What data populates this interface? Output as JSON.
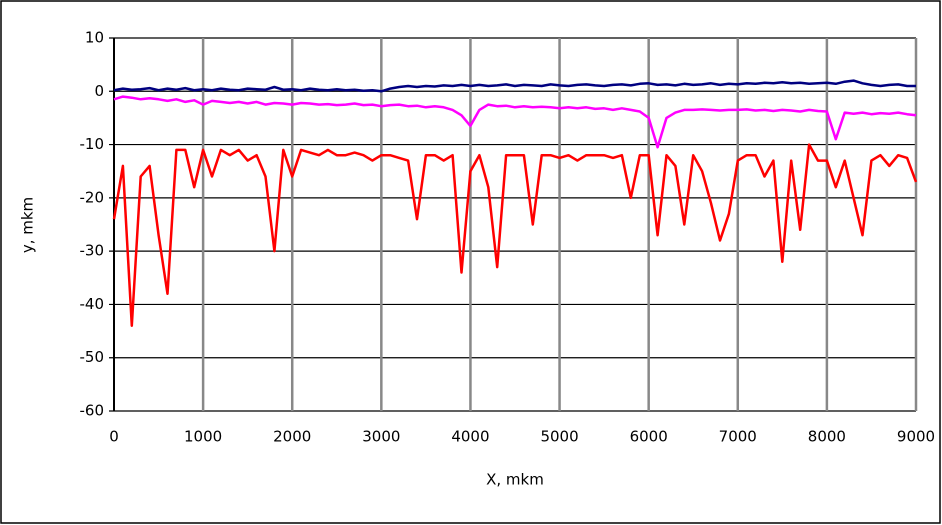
{
  "chart_data": {
    "type": "line",
    "x_label": "X, mkm",
    "y_label": "y, mkm",
    "x": [
      0,
      100,
      200,
      300,
      400,
      500,
      600,
      700,
      800,
      900,
      1000,
      1100,
      1200,
      1300,
      1400,
      1500,
      1600,
      1700,
      1800,
      1900,
      2000,
      2100,
      2200,
      2300,
      2400,
      2500,
      2600,
      2700,
      2800,
      2900,
      3000,
      3100,
      3200,
      3300,
      3400,
      3500,
      3600,
      3700,
      3800,
      3900,
      4000,
      4100,
      4200,
      4300,
      4400,
      4500,
      4600,
      4700,
      4800,
      4900,
      5000,
      5100,
      5200,
      5300,
      5400,
      5500,
      5600,
      5700,
      5800,
      5900,
      6000,
      6100,
      6200,
      6300,
      6400,
      6500,
      6600,
      6700,
      6800,
      6900,
      7000,
      7100,
      7200,
      7300,
      7400,
      7500,
      7600,
      7700,
      7800,
      7900,
      8000,
      8100,
      8200,
      8300,
      8400,
      8500,
      8600,
      8700,
      8800,
      8900,
      9000
    ],
    "series": [
      {
        "color": "#000080",
        "values": [
          0.2,
          0.5,
          0.3,
          0.4,
          0.6,
          0.2,
          0.5,
          0.3,
          0.6,
          0.2,
          0.4,
          0.2,
          0.5,
          0.3,
          0.2,
          0.5,
          0.4,
          0.3,
          0.8,
          0.3,
          0.4,
          0.2,
          0.5,
          0.3,
          0.2,
          0.4,
          0.2,
          0.3,
          0.1,
          0.2,
          0,
          0.5,
          0.8,
          1,
          0.8,
          1,
          0.9,
          1.1,
          1,
          1.2,
          1,
          1.2,
          1,
          1.1,
          1.3,
          1,
          1.2,
          1.1,
          1,
          1.3,
          1.1,
          1,
          1.2,
          1.3,
          1.1,
          1,
          1.2,
          1.3,
          1.1,
          1.4,
          1.5,
          1.2,
          1.3,
          1.1,
          1.4,
          1.2,
          1.3,
          1.5,
          1.2,
          1.4,
          1.3,
          1.5,
          1.4,
          1.6,
          1.5,
          1.7,
          1.5,
          1.6,
          1.4,
          1.5,
          1.6,
          1.4,
          1.8,
          2,
          1.5,
          1.2,
          1,
          1.2,
          1.3,
          1,
          1
        ]
      },
      {
        "color": "#ff00ff",
        "values": [
          -1.5,
          -1,
          -1.2,
          -1.5,
          -1.3,
          -1.5,
          -1.8,
          -1.5,
          -2,
          -1.7,
          -2.5,
          -1.8,
          -2,
          -2.2,
          -2,
          -2.3,
          -2,
          -2.5,
          -2.2,
          -2.3,
          -2.5,
          -2.2,
          -2.3,
          -2.5,
          -2.4,
          -2.6,
          -2.5,
          -2.3,
          -2.6,
          -2.5,
          -2.8,
          -2.6,
          -2.5,
          -2.8,
          -2.7,
          -3,
          -2.8,
          -3,
          -3.5,
          -4.5,
          -6.5,
          -3.5,
          -2.5,
          -2.8,
          -2.7,
          -3,
          -2.8,
          -3,
          -2.9,
          -3,
          -3.2,
          -3,
          -3.2,
          -3,
          -3.3,
          -3.2,
          -3.5,
          -3.2,
          -3.5,
          -3.8,
          -5,
          -10.5,
          -5,
          -4,
          -3.5,
          -3.5,
          -3.4,
          -3.5,
          -3.6,
          -3.5,
          -3.5,
          -3.4,
          -3.6,
          -3.5,
          -3.7,
          -3.5,
          -3.6,
          -3.8,
          -3.5,
          -3.7,
          -3.8,
          -9,
          -4,
          -4.2,
          -4,
          -4.3,
          -4.1,
          -4.2,
          -4,
          -4.3,
          -4.5
        ]
      },
      {
        "color": "#ff0000",
        "values": [
          -24,
          -14,
          -44,
          -16,
          -14,
          -27,
          -38,
          -11,
          -11,
          -18,
          -11,
          -16,
          -11,
          -12,
          -11,
          -13,
          -12,
          -16,
          -30,
          -11,
          -16,
          -11,
          -11.5,
          -12,
          -11,
          -12,
          -12,
          -11.5,
          -12,
          -13,
          -12,
          -12,
          -12.5,
          -13,
          -24,
          -12,
          -12,
          -13,
          -12,
          -34,
          -15,
          -12,
          -18,
          -33,
          -12,
          -12,
          -12,
          -25,
          -12,
          -12,
          -12.5,
          -12,
          -13,
          -12,
          -12,
          -12,
          -12.5,
          -12,
          -20,
          -12,
          -12,
          -27,
          -12,
          -14,
          -25,
          -12,
          -15,
          -21,
          -28,
          -23,
          -13,
          -12,
          -12,
          -16,
          -13,
          -32,
          -13,
          -26,
          -10,
          -13,
          -13,
          -18,
          -13,
          -20,
          -27,
          -13,
          -12,
          -14,
          -12,
          -12.5,
          -17
        ]
      }
    ],
    "xlim": [
      0,
      9000
    ],
    "xticks": [
      0,
      1000,
      2000,
      3000,
      4000,
      5000,
      6000,
      7000,
      8000,
      9000
    ],
    "ylim": [
      -60,
      10
    ],
    "yticks": [
      -60,
      -50,
      -40,
      -30,
      -20,
      -10,
      0,
      10
    ],
    "grid": true
  }
}
